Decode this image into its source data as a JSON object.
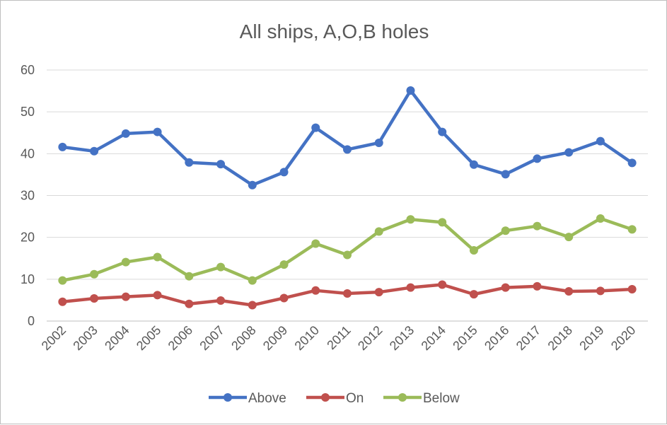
{
  "chart_data": {
    "type": "line",
    "title": "All ships, A,O,B holes",
    "xlabel": "",
    "ylabel": "",
    "ylim": [
      0,
      60
    ],
    "yticks": [
      "0",
      "10",
      "20",
      "30",
      "40",
      "50",
      "60"
    ],
    "categories": [
      "2002",
      "2003",
      "2004",
      "2005",
      "2006",
      "2007",
      "2008",
      "2009",
      "2010",
      "2011",
      "2012",
      "2013",
      "2014",
      "2015",
      "2016",
      "2017",
      "2018",
      "2019",
      "2020"
    ],
    "grid": true,
    "legend_position": "bottom",
    "series": [
      {
        "name": "Above",
        "color": "#4472c4",
        "values": [
          41.6,
          40.6,
          44.8,
          45.2,
          37.9,
          37.5,
          32.5,
          35.6,
          46.2,
          41.0,
          42.6,
          55.1,
          45.2,
          37.4,
          35.1,
          38.8,
          40.3,
          43.0,
          37.8
        ]
      },
      {
        "name": "On",
        "color": "#c0504d",
        "values": [
          4.6,
          5.4,
          5.8,
          6.2,
          4.1,
          4.9,
          3.8,
          5.5,
          7.3,
          6.6,
          6.9,
          8.0,
          8.7,
          6.4,
          8.0,
          8.3,
          7.1,
          7.2,
          7.6
        ]
      },
      {
        "name": "Below",
        "color": "#9bbb59",
        "values": [
          9.7,
          11.2,
          14.1,
          15.3,
          10.7,
          12.9,
          9.7,
          13.5,
          18.5,
          15.8,
          21.4,
          24.3,
          23.6,
          16.9,
          21.6,
          22.7,
          20.1,
          24.5,
          21.9
        ]
      }
    ]
  }
}
